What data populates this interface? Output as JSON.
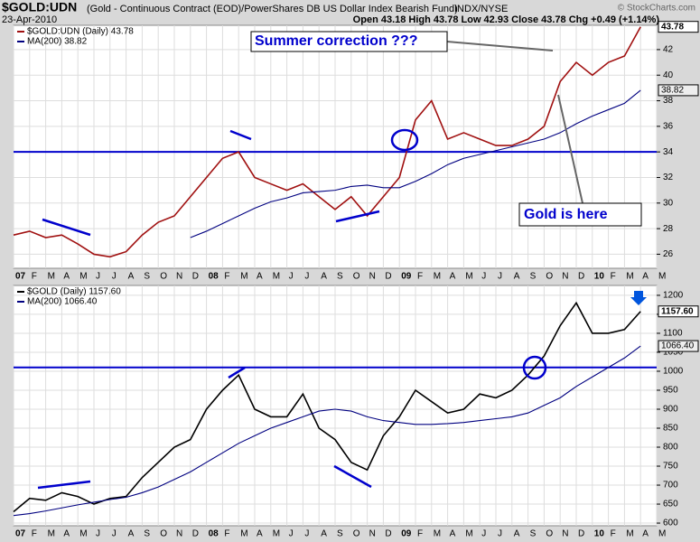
{
  "header": {
    "symbol": "$GOLD:UDN",
    "description": "(Gold - Continuous Contract (EOD)/PowerShares DB US Dollar Index Bearish Fund)",
    "exchange": "INDX/NYSE",
    "date": "23-Apr-2010",
    "quote": "Open 43.18 High 43.78 Low 42.93 Close 43.78 Chg +0.49 (+1.14%)",
    "copyright": "© StockCharts.com"
  },
  "chart_data": [
    {
      "type": "line",
      "categories": [
        "07",
        "F",
        "M",
        "A",
        "M",
        "J",
        "J",
        "A",
        "S",
        "O",
        "N",
        "D",
        "08",
        "F",
        "M",
        "A",
        "M",
        "J",
        "J",
        "A",
        "S",
        "O",
        "N",
        "D",
        "09",
        "F",
        "M",
        "A",
        "M",
        "J",
        "J",
        "A",
        "S",
        "O",
        "N",
        "D",
        "10",
        "F",
        "M",
        "A",
        "M"
      ],
      "series": [
        {
          "name": "$GOLD:UDN (Daily) 43.78",
          "color": "#a01010",
          "last_value_label": "43.78",
          "values": [
            27.5,
            27.8,
            27.3,
            27.5,
            26.8,
            26.0,
            25.8,
            26.2,
            27.5,
            28.5,
            29.0,
            30.5,
            32.0,
            33.5,
            34.0,
            32.0,
            31.5,
            31.0,
            31.5,
            30.5,
            29.5,
            30.5,
            29.0,
            30.5,
            32.0,
            36.5,
            38.0,
            35.0,
            35.5,
            35.0,
            34.5,
            34.5,
            35.0,
            36.0,
            39.5,
            41.0,
            40.0,
            41.0,
            41.5,
            43.78,
            null
          ]
        },
        {
          "name": "MA(200) 38.82",
          "color": "#000080",
          "last_value_label": "38.82",
          "values": [
            null,
            null,
            null,
            null,
            null,
            null,
            null,
            null,
            null,
            null,
            null,
            27.3,
            27.8,
            28.4,
            29.0,
            29.6,
            30.1,
            30.4,
            30.8,
            30.9,
            31.0,
            31.3,
            31.4,
            31.2,
            31.2,
            31.7,
            32.3,
            33.0,
            33.5,
            33.8,
            34.1,
            34.4,
            34.7,
            35.0,
            35.5,
            36.2,
            36.8,
            37.3,
            37.8,
            38.82,
            null
          ]
        }
      ],
      "ylim": [
        24.9,
        43.9
      ],
      "yticks": [
        26,
        28,
        30,
        32,
        34,
        36,
        38,
        40,
        42
      ],
      "grid": true,
      "hline": 34,
      "hline_color": "#0000cc",
      "annotations": [
        "Summer correction ???",
        "Gold is here"
      ]
    },
    {
      "type": "line",
      "categories": [
        "07",
        "F",
        "M",
        "A",
        "M",
        "J",
        "J",
        "A",
        "S",
        "O",
        "N",
        "D",
        "08",
        "F",
        "M",
        "A",
        "M",
        "J",
        "J",
        "A",
        "S",
        "O",
        "N",
        "D",
        "09",
        "F",
        "M",
        "A",
        "M",
        "J",
        "J",
        "A",
        "S",
        "O",
        "N",
        "D",
        "10",
        "F",
        "M",
        "A",
        "M"
      ],
      "series": [
        {
          "name": "$GOLD (Daily) 1157.60",
          "color": "#000000",
          "last_value_label": "1157.60",
          "values": [
            630,
            665,
            660,
            680,
            670,
            650,
            665,
            670,
            720,
            760,
            800,
            820,
            900,
            950,
            990,
            900,
            880,
            880,
            940,
            850,
            820,
            760,
            740,
            830,
            880,
            950,
            920,
            890,
            900,
            940,
            930,
            950,
            990,
            1040,
            1120,
            1180,
            1100,
            1100,
            1110,
            1157.6,
            null
          ]
        },
        {
          "name": "MA(200) 1066.40",
          "color": "#000080",
          "last_value_label": "1066.40",
          "values": [
            620,
            625,
            632,
            640,
            648,
            655,
            662,
            668,
            680,
            695,
            715,
            735,
            760,
            785,
            810,
            830,
            850,
            865,
            880,
            895,
            900,
            895,
            880,
            870,
            865,
            860,
            860,
            862,
            865,
            870,
            875,
            880,
            890,
            910,
            930,
            960,
            985,
            1010,
            1035,
            1066.4,
            null
          ]
        }
      ],
      "ylim": [
        593,
        1226
      ],
      "yticks": [
        600,
        650,
        700,
        750,
        800,
        850,
        900,
        950,
        1000,
        1050,
        1100,
        1150,
        1200
      ],
      "grid": true,
      "hline": 1010,
      "hline_color": "#0000cc"
    }
  ]
}
